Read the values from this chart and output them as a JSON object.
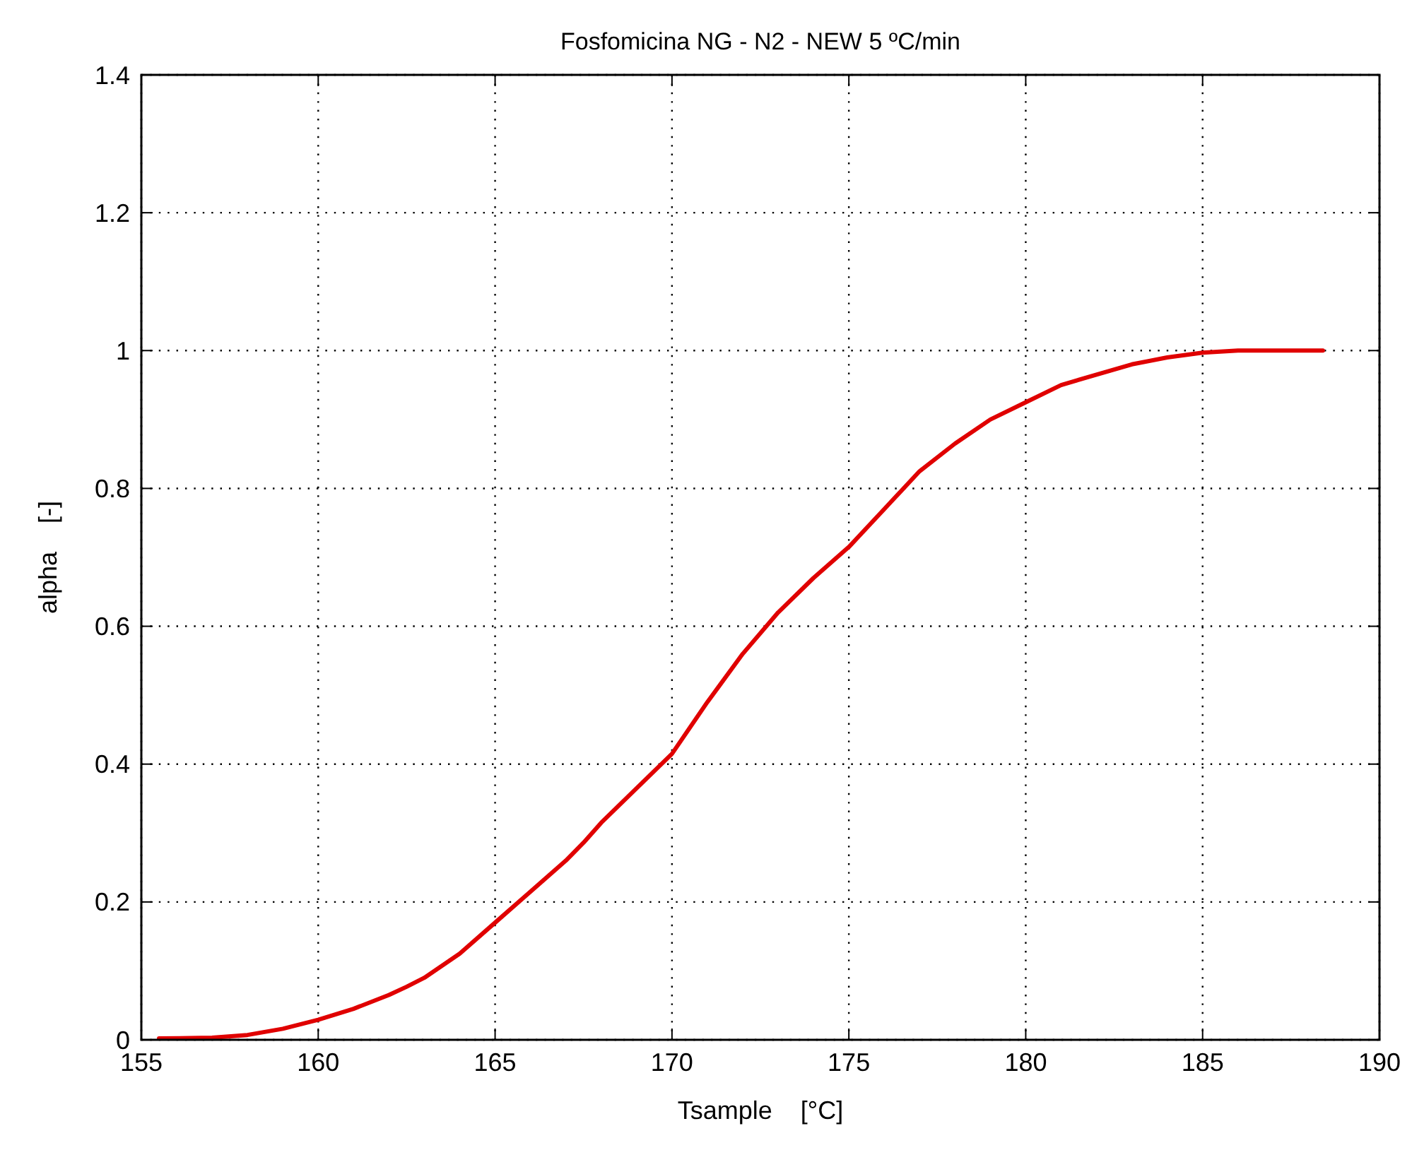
{
  "chart_data": {
    "type": "line",
    "title": "Fosfomicina NG - N2 - NEW 5 ºC/min",
    "xlabel": "Tsample    [°C]",
    "ylabel": "alpha    [-]",
    "xlim": [
      155,
      190
    ],
    "xticks": [
      155,
      160,
      165,
      170,
      175,
      180,
      185,
      190
    ],
    "ylim": [
      0,
      1.4
    ],
    "yticks": [
      0,
      0.2,
      0.4,
      0.6,
      0.8,
      1,
      1.2,
      1.4
    ],
    "grid": true,
    "line_style": "solid",
    "marker": "none",
    "series": [
      {
        "color": "#e00000",
        "x": [
          155.5,
          157,
          158,
          159,
          160,
          161,
          162,
          162.5,
          163,
          164,
          165,
          166,
          167,
          167.5,
          168,
          169,
          170,
          171,
          172,
          173,
          174,
          175,
          176,
          177,
          178,
          179,
          180,
          181,
          182,
          183,
          184,
          185,
          186,
          187,
          188.4
        ],
        "values": [
          0.002,
          0.003,
          0.007,
          0.016,
          0.029,
          0.045,
          0.065,
          0.077,
          0.09,
          0.125,
          0.17,
          0.215,
          0.26,
          0.286,
          0.315,
          0.365,
          0.415,
          0.49,
          0.56,
          0.62,
          0.67,
          0.715,
          0.77,
          0.825,
          0.865,
          0.9,
          0.925,
          0.95,
          0.965,
          0.98,
          0.99,
          0.997,
          1.0,
          1.0,
          1.0
        ]
      }
    ]
  }
}
